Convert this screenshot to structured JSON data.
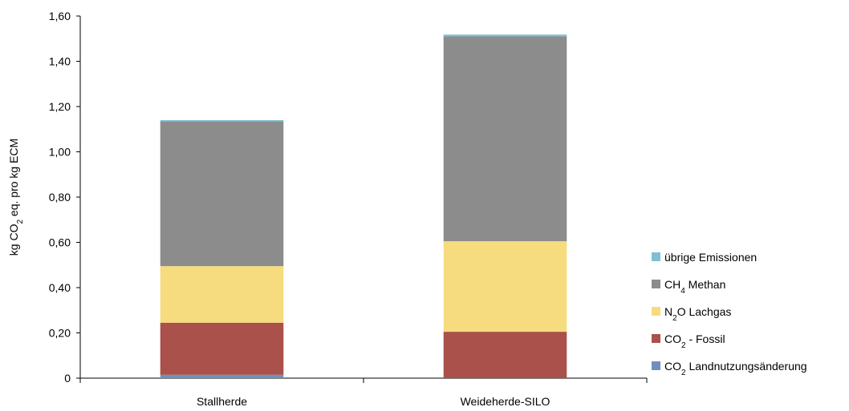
{
  "chart_data": {
    "type": "bar",
    "stacked": true,
    "categories": [
      "Stallherde",
      "Weideherde-SILO"
    ],
    "ylabel": {
      "pre": "kg CO",
      "sub": "2",
      "post": " eq. pro kg ECM"
    },
    "ylim": [
      0,
      1.6
    ],
    "yticks": [
      {
        "value": 0,
        "label": "0"
      },
      {
        "value": 0.2,
        "label": "0,20"
      },
      {
        "value": 0.4,
        "label": "0,40"
      },
      {
        "value": 0.6,
        "label": "0,60"
      },
      {
        "value": 0.8,
        "label": "0,80"
      },
      {
        "value": 1.0,
        "label": "1,00"
      },
      {
        "value": 1.2,
        "label": "1,20"
      },
      {
        "value": 1.4,
        "label": "1,40"
      },
      {
        "value": 1.6,
        "label": "1,60"
      }
    ],
    "grid": false,
    "legend_position": "right",
    "series": [
      {
        "name": "CO2 Landnutzungsänderung",
        "label": {
          "pre": "CO",
          "sub": "2",
          "post": " Landnutzungsänderung"
        },
        "color": "#6f8fbf",
        "values": [
          0.015,
          0.0
        ]
      },
      {
        "name": "CO2 - Fossil",
        "label": {
          "pre": "CO",
          "sub": "2",
          "post": " - Fossil"
        },
        "color": "#a9514a",
        "values": [
          0.23,
          0.205
        ]
      },
      {
        "name": "N2O Lachgas",
        "label": {
          "pre": "N",
          "sub": "2",
          "post": "O Lachgas"
        },
        "color": "#f6dc7e",
        "values": [
          0.25,
          0.4
        ]
      },
      {
        "name": "CH4 Methan",
        "label": {
          "pre": "CH",
          "sub": "4",
          "post": " Methan"
        },
        "color": "#8c8c8c",
        "values": [
          0.64,
          0.905
        ]
      },
      {
        "name": "übrige Emissionen",
        "label": {
          "pre": "übrige Emissionen",
          "sub": "",
          "post": ""
        },
        "color": "#7fbfd4",
        "values": [
          0.005,
          0.008
        ]
      }
    ]
  }
}
